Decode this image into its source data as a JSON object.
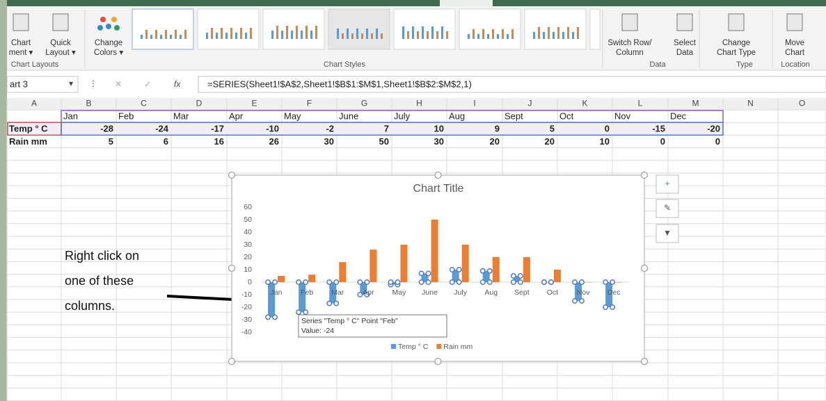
{
  "ribbon": {
    "buttons": [
      {
        "lines": [
          "Chart",
          "ment ▾"
        ]
      },
      {
        "lines": [
          "Quick",
          "Layout ▾"
        ]
      },
      {
        "lines": [
          "Change",
          "Colors ▾"
        ]
      },
      {
        "lines": [
          "Switch Row/",
          "Column"
        ]
      },
      {
        "lines": [
          "Select",
          "Data"
        ]
      },
      {
        "lines": [
          "Change",
          "Chart Type"
        ]
      },
      {
        "lines": [
          "Move",
          "Chart"
        ]
      }
    ],
    "groups": [
      "Chart Layouts",
      "Chart Styles",
      "Data",
      "Type",
      "Location"
    ]
  },
  "formula_bar": {
    "name_box": "art 3",
    "fx": "fx",
    "formula": "=SERIES(Sheet1!$A$2,Sheet1!$B$1:$M$1,Sheet1!$B$2:$M$2,1)"
  },
  "columns": [
    "A",
    "B",
    "C",
    "D",
    "E",
    "F",
    "G",
    "H",
    "I",
    "J",
    "K",
    "L",
    "M",
    "N",
    "O"
  ],
  "chart_data": {
    "type": "bar",
    "title": "Chart Title",
    "categories": [
      "Jan",
      "Feb",
      "Mar",
      "Apr",
      "May",
      "June",
      "July",
      "Aug",
      "Sept",
      "Oct",
      "Nov",
      "Dec"
    ],
    "series": [
      {
        "name": "Temp ° C",
        "color": "#5b9bd5",
        "values": [
          -28,
          -24,
          -17,
          -10,
          -2,
          7,
          10,
          9,
          5,
          0,
          -15,
          -20
        ]
      },
      {
        "name": "Rain mm",
        "color": "#ed7d31",
        "values": [
          5,
          6,
          16,
          26,
          30,
          50,
          30,
          20,
          20,
          10,
          0,
          0
        ]
      }
    ],
    "ylim": [
      -40,
      60
    ],
    "yticks": [
      -40,
      -30,
      -20,
      -10,
      0,
      10,
      20,
      30,
      40,
      50,
      60
    ],
    "grid": false,
    "legend": "bottom"
  },
  "tooltip": {
    "lines": [
      "Series \"Temp ° C\" Point \"Feb\"",
      "Value: -24"
    ]
  },
  "annotation": {
    "lines": [
      "Right click on",
      "one of these",
      "columns."
    ]
  }
}
